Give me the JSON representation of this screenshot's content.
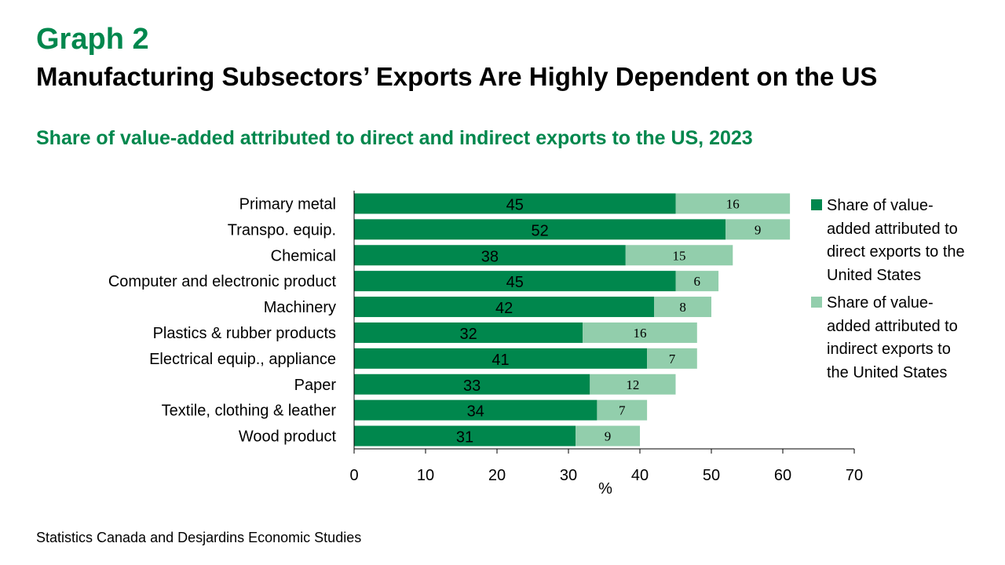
{
  "header": {
    "graph_label": "Graph 2",
    "title": "Manufacturing Subsectors’ Exports Are Highly Dependent on the US",
    "subtitle": "Share of value-added attributed to direct and indirect exports to the US, 2023"
  },
  "footer": {
    "source": "Statistics Canada and Desjardins Economic Studies"
  },
  "colors": {
    "direct": "#00874d",
    "indirect": "#92ceac",
    "accent": "#00874d"
  },
  "chart_data": {
    "type": "bar",
    "orientation": "horizontal",
    "stacked": true,
    "categories": [
      "Primary metal",
      "Transpo. equip.",
      "Chemical",
      "Computer and electronic product",
      "Machinery",
      "Plastics & rubber products",
      "Electrical equip., appliance",
      "Paper",
      "Textile, clothing & leather",
      "Wood product"
    ],
    "series": [
      {
        "name": "Share of value-added attributed to direct exports to the United States",
        "values": [
          45,
          52,
          38,
          45,
          42,
          32,
          41,
          33,
          34,
          31
        ]
      },
      {
        "name": "Share of value-added attributed to indirect exports to the United States",
        "values": [
          16,
          9,
          15,
          6,
          8,
          16,
          7,
          12,
          7,
          9
        ]
      }
    ],
    "xlabel": "%",
    "xlim": [
      0,
      70
    ],
    "xticks": [
      0,
      10,
      20,
      30,
      40,
      50,
      60,
      70
    ],
    "grid": false,
    "legend_position": "right"
  }
}
